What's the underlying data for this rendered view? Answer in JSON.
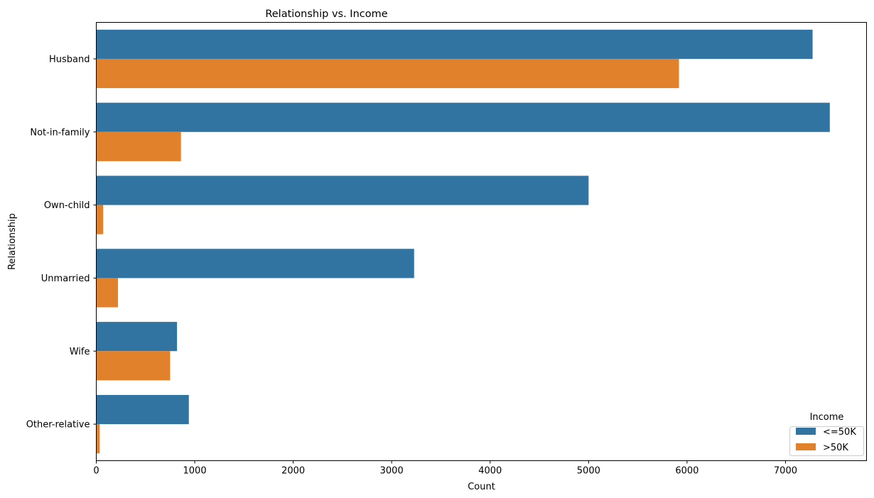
{
  "chart_data": {
    "type": "bar",
    "orientation": "horizontal",
    "title": "Relationship vs. Income",
    "xlabel": "Count",
    "ylabel": "Relationship",
    "categories": [
      "Husband",
      "Not-in-family",
      "Own-child",
      "Unmarried",
      "Wife",
      "Other-relative"
    ],
    "series": [
      {
        "name": "<=50K",
        "color": "#3274a1",
        "values": [
          7275,
          7450,
          5000,
          3228,
          820,
          940
        ]
      },
      {
        "name": ">50K",
        "color": "#e1812c",
        "values": [
          5918,
          860,
          70,
          220,
          750,
          35
        ]
      }
    ],
    "xlim": [
      0,
      7823
    ],
    "xticks": [
      0,
      1000,
      2000,
      3000,
      4000,
      5000,
      6000,
      7000
    ],
    "grid": false,
    "legend": {
      "title": "Income",
      "placement": "lower right"
    }
  }
}
